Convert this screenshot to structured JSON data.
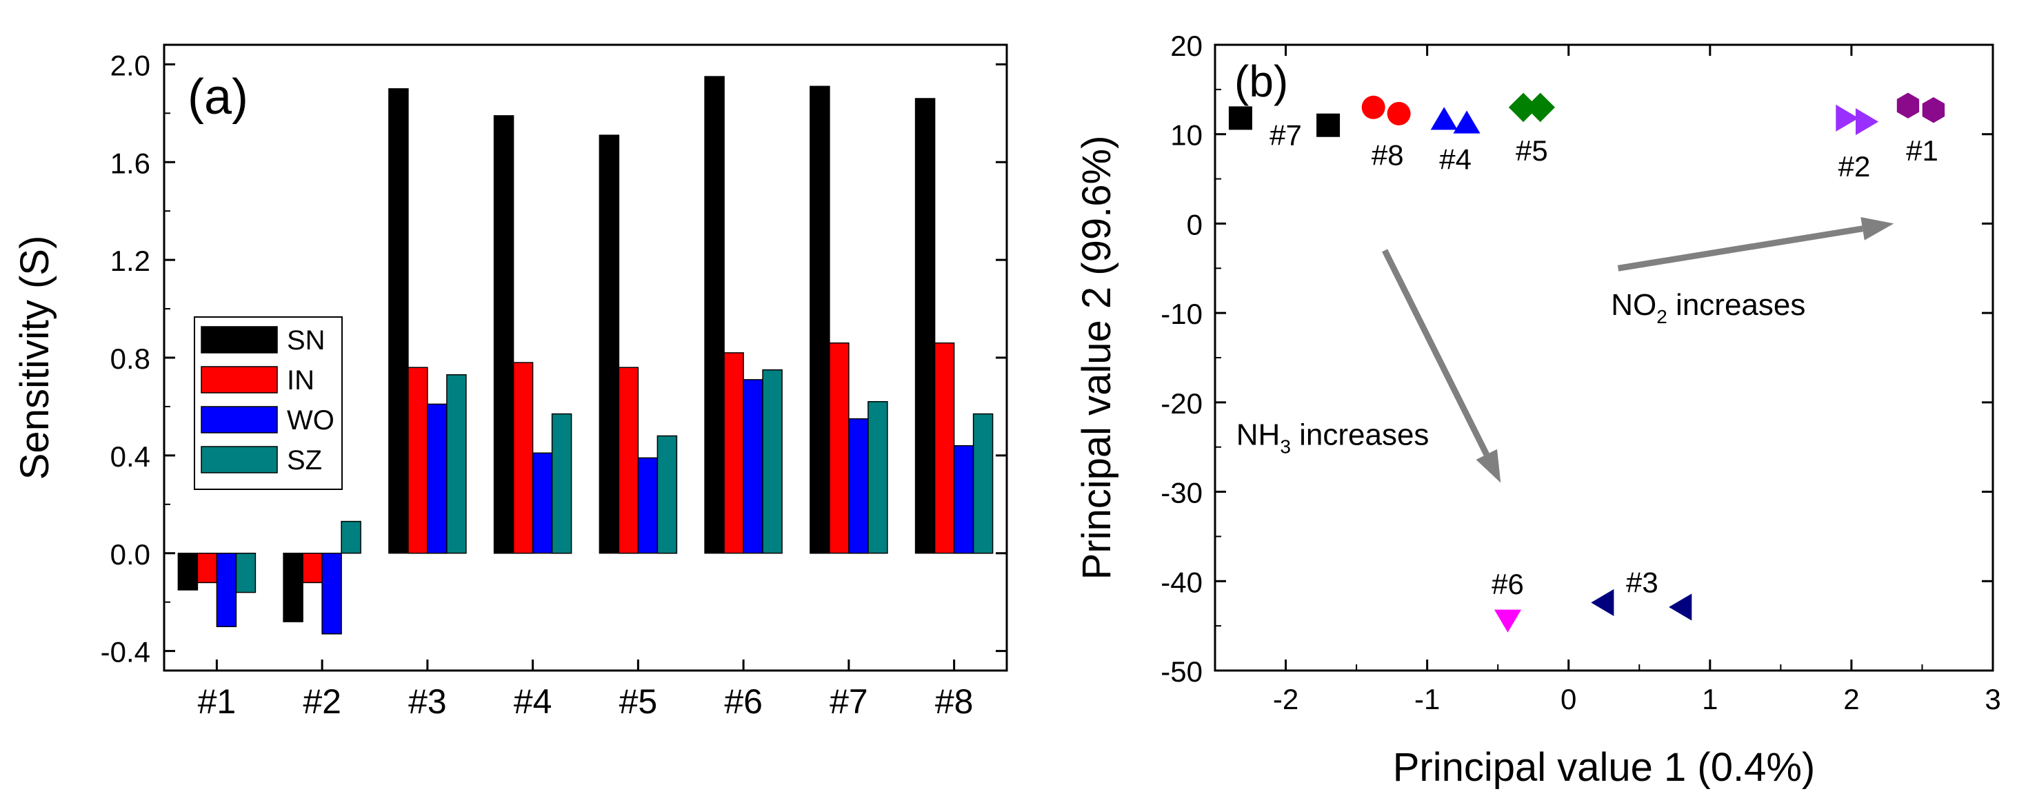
{
  "chart_data": [
    {
      "panel": "(a)",
      "type": "bar",
      "ylabel": "Sensitivity (S)",
      "xlabel": "",
      "ylim": [
        -0.48,
        2.08
      ],
      "yticks": [
        "-0.4",
        "0.0",
        "0.4",
        "0.8",
        "1.2",
        "1.6",
        "2.0"
      ],
      "ytick_values": [
        -0.4,
        0.0,
        0.4,
        0.8,
        1.2,
        1.6,
        2.0
      ],
      "categories": [
        "#1",
        "#2",
        "#3",
        "#4",
        "#5",
        "#6",
        "#7",
        "#8"
      ],
      "legend_position": "left-middle",
      "series": [
        {
          "name": "SN",
          "color": "#000000",
          "values": [
            -0.15,
            -0.28,
            1.9,
            1.79,
            1.71,
            1.95,
            1.91,
            1.86
          ]
        },
        {
          "name": "IN",
          "color": "#ff0000",
          "values": [
            -0.12,
            -0.12,
            0.76,
            0.78,
            0.76,
            0.82,
            0.86,
            0.86
          ]
        },
        {
          "name": "WO",
          "color": "#0000ff",
          "values": [
            -0.3,
            -0.33,
            0.61,
            0.41,
            0.39,
            0.71,
            0.55,
            0.44
          ]
        },
        {
          "name": "SZ",
          "color": "#008080",
          "values": [
            -0.16,
            0.13,
            0.73,
            0.57,
            0.48,
            0.75,
            0.62,
            0.57
          ]
        }
      ]
    },
    {
      "panel": "(b)",
      "type": "scatter",
      "xlabel": "Principal value 1 (0.4%)",
      "ylabel": "Principal value 2 (99.6%)",
      "xlim": [
        -2.5,
        3.0
      ],
      "ylim": [
        -50,
        20
      ],
      "xticks": [
        "-2",
        "-1",
        "0",
        "1",
        "2",
        "3"
      ],
      "xtick_values": [
        -2,
        -1,
        0,
        1,
        2,
        3
      ],
      "yticks": [
        "20",
        "10",
        "0",
        "-10",
        "-20",
        "-30",
        "-40",
        "-50"
      ],
      "ytick_values": [
        20,
        10,
        0,
        -10,
        -20,
        -30,
        -40,
        -50
      ],
      "groups": [
        {
          "label": "#7",
          "color": "#000000",
          "marker": "square",
          "points": [
            [
              -2.32,
              11.8
            ],
            [
              -1.7,
              11.0
            ]
          ],
          "label_at": [
            -2.0,
            10.0
          ]
        },
        {
          "label": "#8",
          "color": "#ff0000",
          "marker": "circle",
          "points": [
            [
              -1.38,
              13.0
            ],
            [
              -1.2,
              12.3
            ]
          ],
          "label_at": [
            -1.28,
            7.8
          ]
        },
        {
          "label": "#4",
          "color": "#0000ff",
          "marker": "triangle-up",
          "points": [
            [
              -0.88,
              11.6
            ],
            [
              -0.72,
              11.2
            ]
          ],
          "label_at": [
            -0.8,
            7.3
          ]
        },
        {
          "label": "#5",
          "color": "#008000",
          "marker": "diamond",
          "points": [
            [
              -0.32,
              13.0
            ],
            [
              -0.2,
              13.0
            ]
          ],
          "label_at": [
            -0.26,
            8.3
          ]
        },
        {
          "label": "#2",
          "color": "#9a30ff",
          "marker": "triangle-right",
          "points": [
            [
              1.96,
              11.8
            ],
            [
              2.1,
              11.4
            ]
          ],
          "label_at": [
            2.02,
            6.5
          ]
        },
        {
          "label": "#1",
          "color": "#8b0a8b",
          "marker": "hexagon",
          "points": [
            [
              2.4,
              13.2
            ],
            [
              2.58,
              12.7
            ]
          ],
          "label_at": [
            2.5,
            8.3
          ]
        },
        {
          "label": "#6",
          "color": "#ff00ff",
          "marker": "triangle-down",
          "points": [
            [
              -0.43,
              -44.3
            ]
          ],
          "label_at": [
            -0.43,
            -40.2
          ]
        },
        {
          "label": "#3",
          "color": "#00007f",
          "marker": "triangle-left",
          "points": [
            [
              0.25,
              -42.4
            ],
            [
              0.8,
              -42.9
            ]
          ],
          "label_at": [
            0.52,
            -40.0
          ]
        }
      ],
      "annotations": [
        {
          "text": "NO",
          "sub": "2",
          "text_after": " increases",
          "at": [
            0.3,
            -9.0
          ],
          "arrow_from": [
            0.35,
            -5.0
          ],
          "arrow_to": [
            2.3,
            0.0
          ]
        },
        {
          "text": "NH",
          "sub": "3",
          "text_after": " increases",
          "at": [
            -2.35,
            -23.5
          ],
          "arrow_from": [
            -1.3,
            -3.0
          ],
          "arrow_to": [
            -0.48,
            -29.0
          ]
        }
      ]
    }
  ]
}
